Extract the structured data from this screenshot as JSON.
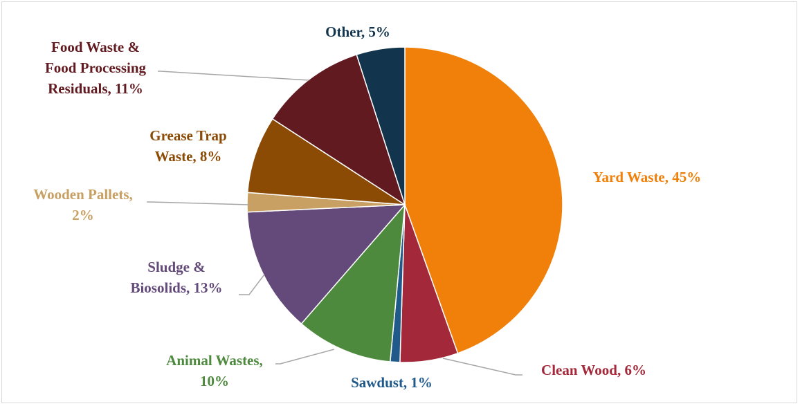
{
  "chart_data": {
    "type": "pie",
    "title": "",
    "slices": [
      {
        "name": "Yard Waste",
        "value": 45,
        "label_lines": [
          "Yard Waste, 45%"
        ],
        "color": "#f0800a"
      },
      {
        "name": "Clean Wood",
        "value": 6,
        "label_lines": [
          "Clean Wood, 6%"
        ],
        "color": "#a3293a"
      },
      {
        "name": "Sawdust",
        "value": 1,
        "label_lines": [
          "Sawdust, 1%"
        ],
        "color": "#1f5a8a"
      },
      {
        "name": "Animal Wastes",
        "value": 10,
        "label_lines": [
          "Animal Wastes,",
          "10%"
        ],
        "color": "#4e8a3e"
      },
      {
        "name": "Sludge & Biosolids",
        "value": 13,
        "label_lines": [
          "Sludge &",
          "Biosolids, 13%"
        ],
        "color": "#634a7a"
      },
      {
        "name": "Wooden Pallets",
        "value": 2,
        "label_lines": [
          "Wooden Pallets,",
          "2%"
        ],
        "color": "#c9a063"
      },
      {
        "name": "Grease Trap Waste",
        "value": 8,
        "label_lines": [
          "Grease Trap",
          "Waste, 8%"
        ],
        "color": "#8c4b05"
      },
      {
        "name": "Food Waste & Food Processing Residuals",
        "value": 11,
        "label_lines": [
          "Food Waste &",
          "Food Processing",
          "Residuals, 11%"
        ],
        "color": "#611a20"
      },
      {
        "name": "Other",
        "value": 5,
        "label_lines": [
          "Other, 5%"
        ],
        "color": "#12344d"
      }
    ],
    "label_colors": {
      "Yard Waste": "#f0800a",
      "Clean Wood": "#a3293a",
      "Sawdust": "#1f5a8a",
      "Animal Wastes": "#4e8a3e",
      "Sludge & Biosolids": "#634a7a",
      "Wooden Pallets": "#c9a063",
      "Grease Trap Waste": "#8c4b05",
      "Food Waste & Food Processing Residuals": "#611a20",
      "Other": "#12344d"
    },
    "leader_line_color": "#a6a6a6",
    "start_angle": "12 o'clock",
    "direction": "clockwise"
  }
}
